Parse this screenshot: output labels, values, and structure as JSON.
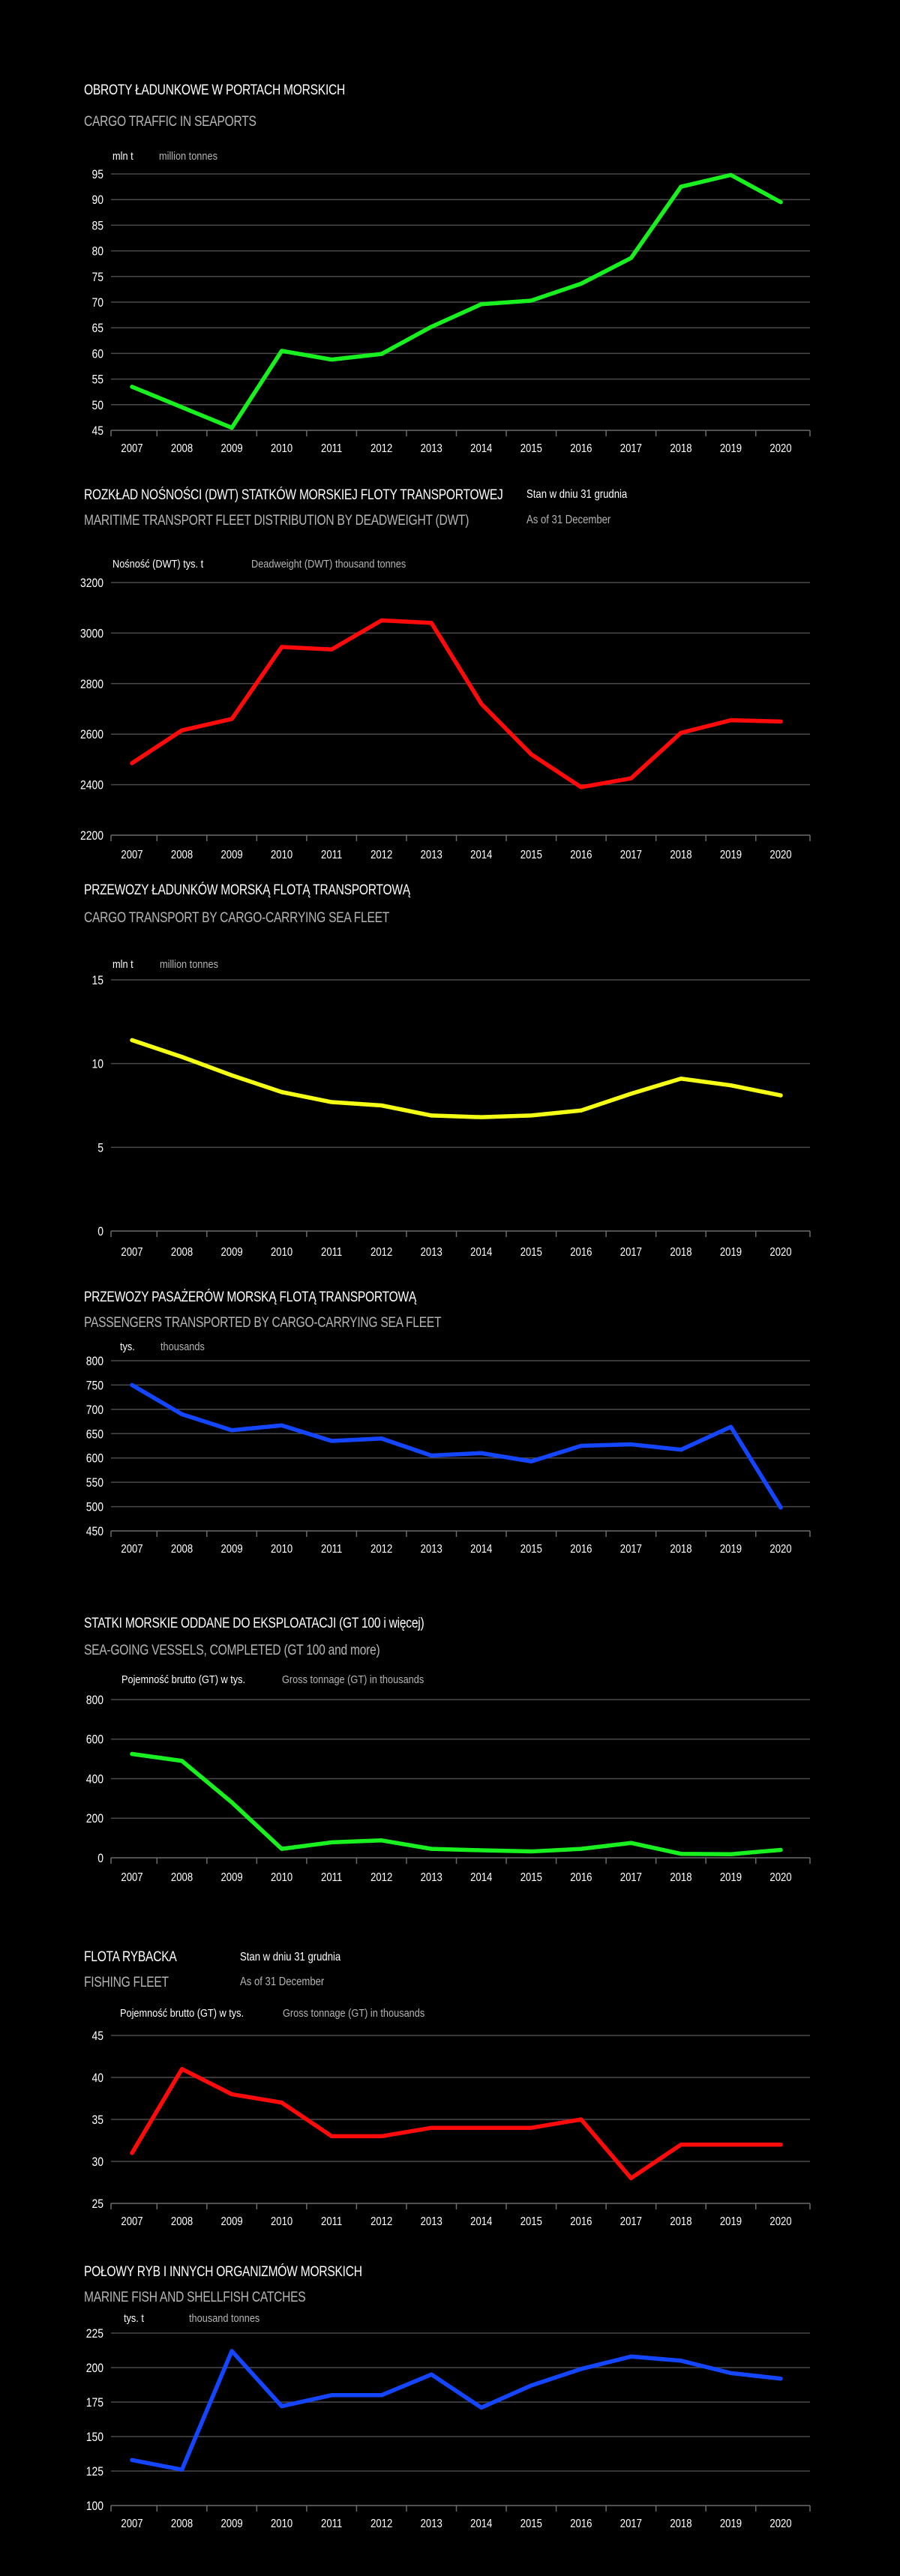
{
  "chart_data": [
    {
      "type": "line",
      "title": "OBROTY ŁADUNKOWE W PORTACH MORSKICH",
      "subtitle": "CARGO TRAFFIC IN SEAPORTS",
      "unit_pl": "mln t",
      "unit_en": "million tonnes",
      "note_pl": "",
      "note_en": "",
      "color": "#19f01f",
      "categories": [
        "2007",
        "2008",
        "2009",
        "2010",
        "2011",
        "2012",
        "2013",
        "2014",
        "2015",
        "2016",
        "2017",
        "2018",
        "2019",
        "2020"
      ],
      "values": [
        53.5,
        49.5,
        45.5,
        60.5,
        58.8,
        59.9,
        65.2,
        69.6,
        70.3,
        73.6,
        78.6,
        92.5,
        94.8,
        89.5
      ],
      "ylim": [
        45,
        95
      ],
      "yticks": [
        45,
        50,
        55,
        60,
        65,
        70,
        75,
        80,
        85,
        90,
        95
      ],
      "grid": true,
      "legend": "none"
    },
    {
      "type": "line",
      "title": "ROZKŁAD NOŚNOŚCI (DWT) STATKÓW MORSKIEJ FLOTY TRANSPORTOWEJ",
      "subtitle": "MARITIME TRANSPORT FLEET DISTRIBUTION BY DEADWEIGHT (DWT)",
      "unit_pl": "Nośność (DWT)  tys. t",
      "unit_en": "Deadweight (DWT) thousand tonnes",
      "note_pl": "Stan w dniu 31 grudnia",
      "note_en": "As of 31 December",
      "color": "#ff0a0a",
      "categories": [
        "2007",
        "2008",
        "2009",
        "2010",
        "2011",
        "2012",
        "2013",
        "2014",
        "2015",
        "2016",
        "2017",
        "2018",
        "2019",
        "2020"
      ],
      "values": [
        2485,
        2615,
        2660,
        2945,
        2935,
        3050,
        3040,
        2720,
        2520,
        2390,
        2425,
        2605,
        2655,
        2650
      ],
      "ylim": [
        2200,
        3200
      ],
      "yticks": [
        2200,
        2400,
        2600,
        2800,
        3000,
        3200
      ],
      "grid": true,
      "legend": "none"
    },
    {
      "type": "line",
      "title": "PRZEWOZY ŁADUNKÓW MORSKĄ FLOTĄ TRANSPORTOWĄ",
      "subtitle": "CARGO TRANSPORT BY CARGO-CARRYING SEA FLEET",
      "unit_pl": "mln t",
      "unit_en": "million tonnes",
      "note_pl": "",
      "note_en": "",
      "color": "#f5ff14",
      "categories": [
        "2007",
        "2008",
        "2009",
        "2010",
        "2011",
        "2012",
        "2013",
        "2014",
        "2015",
        "2016",
        "2017",
        "2018",
        "2019",
        "2020"
      ],
      "values": [
        11.4,
        10.4,
        9.3,
        8.3,
        7.7,
        7.5,
        6.9,
        6.8,
        6.9,
        7.2,
        8.2,
        9.1,
        8.7,
        8.1
      ],
      "ylim": [
        0,
        15
      ],
      "yticks": [
        0,
        5,
        10,
        15
      ],
      "grid": true,
      "legend": "none"
    },
    {
      "type": "line",
      "title": "PRZEWOZY PASAŻERÓW MORSKĄ FLOTĄ TRANSPORTOWĄ",
      "subtitle": "PASSENGERS TRANSPORTED BY CARGO-CARRYING SEA FLEET",
      "unit_pl": "tys.",
      "unit_en": "thousands",
      "note_pl": "",
      "note_en": "",
      "color": "#1446ff",
      "categories": [
        "2007",
        "2008",
        "2009",
        "2010",
        "2011",
        "2012",
        "2013",
        "2014",
        "2015",
        "2016",
        "2017",
        "2018",
        "2019",
        "2020"
      ],
      "values": [
        750,
        690,
        657,
        667,
        635,
        640,
        605,
        610,
        593,
        625,
        628,
        617,
        664,
        498
      ],
      "ylim": [
        450,
        800
      ],
      "yticks": [
        450,
        500,
        550,
        600,
        650,
        700,
        750,
        800
      ],
      "grid": true,
      "legend": "none"
    },
    {
      "type": "line",
      "title": "STATKI MORSKIE ODDANE DO EKSPLOATACJI (GT 100 i więcej)",
      "subtitle": "SEA-GOING VESSELS, COMPLETED (GT 100 and more)",
      "unit_pl": "Pojemność brutto (GT) w tys.",
      "unit_en": "Gross tonnage (GT) in thousands",
      "note_pl": "",
      "note_en": "",
      "color": "#19f01f",
      "categories": [
        "2007",
        "2008",
        "2009",
        "2010",
        "2011",
        "2012",
        "2013",
        "2014",
        "2015",
        "2016",
        "2017",
        "2018",
        "2019",
        "2020"
      ],
      "values": [
        525,
        490,
        280,
        45,
        78,
        88,
        45,
        38,
        32,
        45,
        75,
        20,
        18,
        40
      ],
      "ylim": [
        0,
        800
      ],
      "yticks": [
        0,
        200,
        400,
        600,
        800
      ],
      "grid": true,
      "legend": "none"
    },
    {
      "type": "line",
      "title": "FLOTA RYBACKA",
      "subtitle": "FISHING FLEET",
      "unit_pl": "Pojemność brutto (GT)  w tys.",
      "unit_en": "Gross tonnage (GT)   in thousands",
      "note_pl": "Stan w dniu 31 grudnia",
      "note_en": "As of 31 December",
      "color": "#ff0a0a",
      "categories": [
        "2007",
        "2008",
        "2009",
        "2010",
        "2011",
        "2012",
        "2013",
        "2014",
        "2015",
        "2016",
        "2017",
        "2018",
        "2019",
        "2020"
      ],
      "values": [
        31,
        41,
        38,
        37,
        33,
        33,
        34,
        34,
        34,
        35,
        28,
        32,
        32,
        32
      ],
      "ylim": [
        25,
        45
      ],
      "yticks": [
        25,
        30,
        35,
        40,
        45
      ],
      "grid": true,
      "legend": "none"
    },
    {
      "type": "line",
      "title": "POŁOWY RYB I INNYCH ORGANIZMÓW MORSKICH",
      "subtitle": "MARINE FISH AND SHELLFISH CATCHES",
      "unit_pl": "tys. t",
      "unit_en": "thousand tonnes",
      "note_pl": "",
      "note_en": "",
      "color": "#1446ff",
      "categories": [
        "2007",
        "2008",
        "2009",
        "2010",
        "2011",
        "2012",
        "2013",
        "2014",
        "2015",
        "2016",
        "2017",
        "2018",
        "2019",
        "2020"
      ],
      "values": [
        133,
        126,
        212,
        172,
        180,
        180,
        195,
        171,
        187,
        199,
        208,
        205,
        196,
        192
      ],
      "ylim": [
        100,
        225
      ],
      "yticks": [
        100,
        125,
        150,
        175,
        200,
        225
      ],
      "grid": true,
      "legend": "none"
    }
  ]
}
